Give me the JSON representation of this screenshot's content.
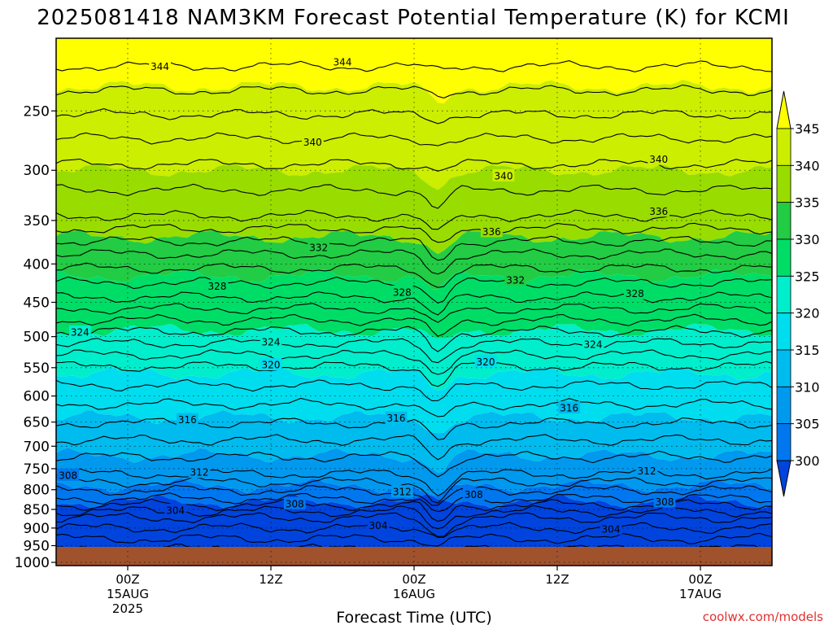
{
  "chart_data": {
    "type": "heatmap",
    "title": "2025081418 NAM3KM Forecast Potential Temperature (K) for KCMI",
    "xlabel": "Forecast Time (UTC)",
    "ylabel": "",
    "x_ticks": [
      {
        "label": "00Z",
        "sub1": "15AUG",
        "sub2": "2025",
        "hour": 6
      },
      {
        "label": "12Z",
        "sub1": "",
        "sub2": "",
        "hour": 18
      },
      {
        "label": "00Z",
        "sub1": "16AUG",
        "sub2": "",
        "hour": 30
      },
      {
        "label": "12Z",
        "sub1": "",
        "sub2": "",
        "hour": 42
      },
      {
        "label": "00Z",
        "sub1": "17AUG",
        "sub2": "",
        "hour": 54
      }
    ],
    "x_range_hours": [
      0,
      60
    ],
    "y_ticks": [
      "250",
      "300",
      "350",
      "400",
      "450",
      "500",
      "550",
      "600",
      "650",
      "700",
      "750",
      "800",
      "850",
      "900",
      "950",
      "1000"
    ],
    "y_range_hPa": [
      200,
      1010
    ],
    "y_scale": "log",
    "colorbar": {
      "ticks": [
        "345",
        "340",
        "335",
        "330",
        "325",
        "320",
        "315",
        "310",
        "305",
        "300"
      ],
      "colors": [
        "#ffff00",
        "#ccee00",
        "#99dd00",
        "#22cc44",
        "#00dd66",
        "#00eecc",
        "#00ddee",
        "#00bbee",
        "#0099ee",
        "#0077ee",
        "#0044dd"
      ],
      "extend": "both"
    },
    "contour_levels": [
      304,
      308,
      312,
      316,
      320,
      324,
      328,
      332,
      336,
      340,
      344
    ],
    "contours": [
      {
        "value": 344,
        "pressure": 218
      },
      {
        "value": 340,
        "pressure": 272
      },
      {
        "value": 336,
        "pressure": 345
      },
      {
        "value": 332,
        "pressure": 388
      },
      {
        "value": 328,
        "pressure": 443
      },
      {
        "value": 324,
        "pressure": 492
      },
      {
        "value": 320,
        "pressure": 548
      },
      {
        "value": 316,
        "pressure": 652
      },
      {
        "value": 312,
        "pressure": 762
      },
      {
        "value": 308,
        "pressure": 822
      },
      {
        "value": 304,
        "pressure": 872
      }
    ],
    "contour_labels": [
      {
        "text": "344",
        "hour": 8.7,
        "pressure": 218
      },
      {
        "text": "344",
        "hour": 24,
        "pressure": 215
      },
      {
        "text": "340",
        "hour": 21.5,
        "pressure": 275
      },
      {
        "text": "340",
        "hour": 37.5,
        "pressure": 305
      },
      {
        "text": "340",
        "hour": 50.5,
        "pressure": 290
      },
      {
        "text": "336",
        "hour": 36.5,
        "pressure": 362
      },
      {
        "text": "336",
        "hour": 50.5,
        "pressure": 340
      },
      {
        "text": "332",
        "hour": 22,
        "pressure": 380
      },
      {
        "text": "332",
        "hour": 38.5,
        "pressure": 420
      },
      {
        "text": "328",
        "hour": 13.5,
        "pressure": 428
      },
      {
        "text": "328",
        "hour": 29,
        "pressure": 436
      },
      {
        "text": "328",
        "hour": 48.5,
        "pressure": 438
      },
      {
        "text": "324",
        "hour": 2,
        "pressure": 493
      },
      {
        "text": "324",
        "hour": 18,
        "pressure": 508
      },
      {
        "text": "324",
        "hour": 45,
        "pressure": 512
      },
      {
        "text": "320",
        "hour": 18,
        "pressure": 545
      },
      {
        "text": "320",
        "hour": 36,
        "pressure": 540
      },
      {
        "text": "316",
        "hour": 11,
        "pressure": 645
      },
      {
        "text": "316",
        "hour": 28.5,
        "pressure": 642
      },
      {
        "text": "316",
        "hour": 43,
        "pressure": 622
      },
      {
        "text": "312",
        "hour": 12,
        "pressure": 758
      },
      {
        "text": "312",
        "hour": 29,
        "pressure": 805
      },
      {
        "text": "312",
        "hour": 49.5,
        "pressure": 755
      },
      {
        "text": "308",
        "hour": 1,
        "pressure": 765
      },
      {
        "text": "308",
        "hour": 20,
        "pressure": 835
      },
      {
        "text": "308",
        "hour": 35,
        "pressure": 812
      },
      {
        "text": "308",
        "hour": 51,
        "pressure": 830
      },
      {
        "text": "304",
        "hour": 10,
        "pressure": 852
      },
      {
        "text": "304",
        "hour": 27,
        "pressure": 892
      },
      {
        "text": "304",
        "hour": 46.5,
        "pressure": 903
      }
    ],
    "surface_color": "#a0522d",
    "grid": true,
    "credit": "coolwx.com/models"
  }
}
